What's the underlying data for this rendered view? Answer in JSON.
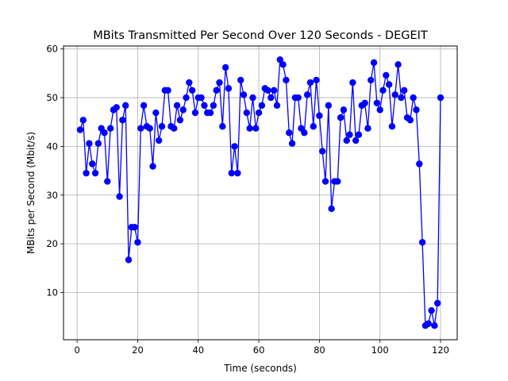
{
  "chart_data": {
    "type": "line",
    "title": "MBits Transmitted Per Second Over 120 Seconds - DEGEIT",
    "xlabel": "Time (seconds)",
    "ylabel": "MBits per Second (Mbit/s)",
    "xlim": [
      -4.5,
      125.5
    ],
    "ylim": [
      0.3,
      60.6
    ],
    "xticks": [
      0,
      20,
      40,
      60,
      80,
      100,
      120
    ],
    "yticks": [
      10,
      20,
      30,
      40,
      50,
      60
    ],
    "grid": true,
    "legend": "none",
    "series": [
      {
        "color": "#0000ff",
        "marker": "circle",
        "x": [
          1,
          2,
          3,
          4,
          5,
          6,
          7,
          8,
          9,
          10,
          11,
          12,
          13,
          14,
          15,
          16,
          17,
          18,
          19,
          20,
          21,
          22,
          23,
          24,
          25,
          26,
          27,
          28,
          29,
          30,
          31,
          32,
          33,
          34,
          35,
          36,
          37,
          38,
          39,
          40,
          41,
          42,
          43,
          44,
          45,
          46,
          47,
          48,
          49,
          50,
          51,
          52,
          53,
          54,
          55,
          56,
          57,
          58,
          59,
          60,
          61,
          62,
          63,
          64,
          65,
          66,
          67,
          68,
          69,
          70,
          71,
          72,
          73,
          74,
          75,
          76,
          77,
          78,
          79,
          80,
          81,
          82,
          83,
          84,
          85,
          86,
          87,
          88,
          89,
          90,
          91,
          92,
          93,
          94,
          95,
          96,
          97,
          98,
          99,
          100,
          101,
          102,
          103,
          104,
          105,
          106,
          107,
          108,
          109,
          110,
          111,
          112,
          113,
          114,
          115,
          116,
          117,
          118,
          119,
          120
        ],
        "y": [
          43.4,
          45.4,
          34.5,
          40.6,
          36.4,
          34.5,
          40.6,
          43.7,
          42.8,
          32.8,
          43.7,
          47.5,
          48.0,
          29.7,
          45.4,
          48.4,
          16.7,
          23.4,
          23.4,
          20.3,
          43.7,
          48.4,
          44.1,
          43.7,
          35.9,
          46.9,
          41.2,
          44.1,
          51.5,
          51.5,
          44.1,
          43.7,
          48.4,
          45.4,
          47.5,
          50.0,
          53.1,
          51.5,
          46.9,
          50.0,
          50.0,
          48.4,
          46.9,
          46.9,
          48.4,
          51.5,
          53.1,
          44.1,
          56.2,
          51.9,
          34.5,
          40.0,
          34.5,
          53.6,
          50.6,
          46.9,
          43.7,
          50.0,
          43.7,
          46.9,
          48.4,
          51.9,
          51.5,
          50.0,
          51.5,
          48.4,
          57.8,
          56.8,
          53.6,
          42.8,
          40.6,
          50.0,
          50.0,
          43.7,
          42.8,
          50.6,
          53.1,
          44.1,
          53.6,
          46.3,
          39.0,
          32.8,
          48.4,
          27.2,
          32.8,
          32.8,
          45.9,
          47.5,
          41.2,
          42.4,
          53.1,
          41.2,
          42.4,
          48.4,
          48.9,
          43.7,
          53.6,
          57.2,
          48.9,
          47.5,
          51.5,
          54.6,
          52.7,
          44.1,
          50.6,
          56.8,
          50.0,
          51.5,
          45.9,
          45.4,
          50.0,
          47.5,
          36.4,
          20.3,
          3.2,
          3.6,
          6.3,
          3.2,
          7.8,
          50.0
        ]
      }
    ]
  }
}
